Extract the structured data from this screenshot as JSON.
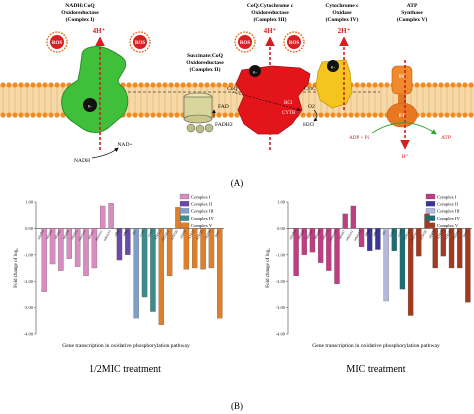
{
  "panel_a": {
    "letter": "(A)",
    "complex1": {
      "title": "NADH:CoQ",
      "title2": "Oxidoreductase",
      "title3": "(Complex I)",
      "electron": "e-",
      "ros": "ROS",
      "protons": "4H⁺",
      "nadh": "NADH",
      "nad": "NAD+"
    },
    "complex2": {
      "title": "Succinate:CoQ",
      "title2": "Oxidoreductase",
      "title3": "(Complex II)",
      "fad": "FAD",
      "fadh2": "FADH2",
      "coq": "CoQ"
    },
    "complex3": {
      "title": "CoQ:Cytochrome c",
      "title2": "Oxidoreductase",
      "title3": "(Complex III)",
      "ros": "ROS",
      "protons": "4H⁺",
      "electron": "e-",
      "bci": "BCI",
      "cytb": "CYTB"
    },
    "complex4": {
      "title": "Cytochrome c",
      "title2": "Oxidase",
      "title3": "(Complex IV)",
      "protons": "2H⁺",
      "cytc": "CytC",
      "o2": "O2",
      "h2o": "H2O",
      "electron": "e-"
    },
    "complex5": {
      "title": "ATP",
      "title2": "Synthase",
      "title3": "(Complex V)",
      "f0": "F0",
      "f1": "F1",
      "adp": "ADP + Pi",
      "atp": "ATP",
      "h": "H⁺"
    }
  },
  "panel_b": {
    "letter": "(B)"
  },
  "chart_data": [
    {
      "type": "bar",
      "caption": "1/2MIC treatment",
      "xlabel": "Gene transcription in oxidative phosphorylation pathway",
      "ylabel": "Fold change of log₂",
      "ylim": [
        -4.0,
        1.0
      ],
      "yticks": [
        "-4.00",
        "-3.00",
        "-2.00",
        "-1.00",
        "0.00",
        "1.00"
      ],
      "legend_position": "top-right",
      "legend": [
        "Complex I",
        "Complex II",
        "Complex III",
        "Complex IV",
        "Complex V"
      ],
      "colors": {
        "Complex I": "#d88cc0",
        "Complex II": "#6a49a8",
        "Complex III": "#7f9ec8",
        "Complex IV": "#3f8a8a",
        "Complex V": "#e07f2a"
      },
      "categories": [
        "ndufb4",
        "ndufa9",
        "ndufs2",
        "ndufs8",
        "ndufv1",
        "ndufa10",
        "ndufs7",
        "ndufa11",
        "ndufa12",
        "sdha",
        "sdhc",
        "qcr",
        "cox1",
        "cox3",
        "ATP5O",
        "ATP5G1",
        "ATP5H",
        "ATP5I",
        "ATP5J",
        "ATP5D",
        "ATP5F",
        "ppa1"
      ],
      "groups": [
        "Complex I",
        "Complex I",
        "Complex I",
        "Complex I",
        "Complex I",
        "Complex I",
        "Complex I",
        "Complex I",
        "Complex I",
        "Complex II",
        "Complex II",
        "Complex III",
        "Complex IV",
        "Complex IV",
        "Complex V",
        "Complex V",
        "Complex V",
        "Complex V",
        "Complex V",
        "Complex V",
        "Complex V",
        "Complex V"
      ],
      "values": [
        -2.4,
        -1.35,
        -1.6,
        -1.15,
        -1.45,
        -1.8,
        -1.5,
        0.85,
        0.95,
        -1.2,
        -1.0,
        -3.4,
        -2.6,
        -3.15,
        -3.65,
        -1.8,
        0.8,
        -1.55,
        -1.5,
        -1.55,
        -1.5,
        -3.4
      ]
    },
    {
      "type": "bar",
      "caption": "MIC treatment",
      "xlabel": "Gene transcription in oxidative phosphorylation pathway",
      "ylabel": "Fold change of log₂",
      "ylim": [
        -4.0,
        1.0
      ],
      "yticks": [
        "-4.00",
        "-3.00",
        "-2.00",
        "-1.00",
        "0.00",
        "1.00"
      ],
      "legend_position": "top-right",
      "legend": [
        "Complex I",
        "Complex II",
        "Complex III",
        "Complex IV",
        "Complex V"
      ],
      "colors": {
        "Complex I": "#bd3e82",
        "Complex II": "#3c3598",
        "Complex III": "#b3b9dc",
        "Complex IV": "#1d6d71",
        "Complex V": "#a33a1f"
      },
      "categories": [
        "ndufb4",
        "ndufa9",
        "ndufs2",
        "ndufs8",
        "ndufv1",
        "ndufa10",
        "ndufs7",
        "ndufa11",
        "ndufa12",
        "sdha",
        "sdhc",
        "qcr",
        "cox1",
        "cox3",
        "ATP5O",
        "ATP5G1",
        "ATP5H",
        "ATP5I",
        "ATP5J",
        "ATP5D",
        "ATP5F",
        "ppa1"
      ],
      "groups": [
        "Complex I",
        "Complex I",
        "Complex I",
        "Complex I",
        "Complex I",
        "Complex I",
        "Complex I",
        "Complex I",
        "Complex I",
        "Complex II",
        "Complex II",
        "Complex III",
        "Complex IV",
        "Complex IV",
        "Complex V",
        "Complex V",
        "Complex V",
        "Complex V",
        "Complex V",
        "Complex V",
        "Complex V",
        "Complex V"
      ],
      "values": [
        -1.8,
        -1.0,
        -0.9,
        -1.3,
        -1.6,
        -2.1,
        0.55,
        0.85,
        -0.7,
        -0.85,
        -0.8,
        -2.75,
        -0.85,
        -2.3,
        -3.3,
        -1.05,
        0.55,
        -1.5,
        -1.05,
        -1.5,
        -1.5,
        -2.8
      ]
    }
  ]
}
